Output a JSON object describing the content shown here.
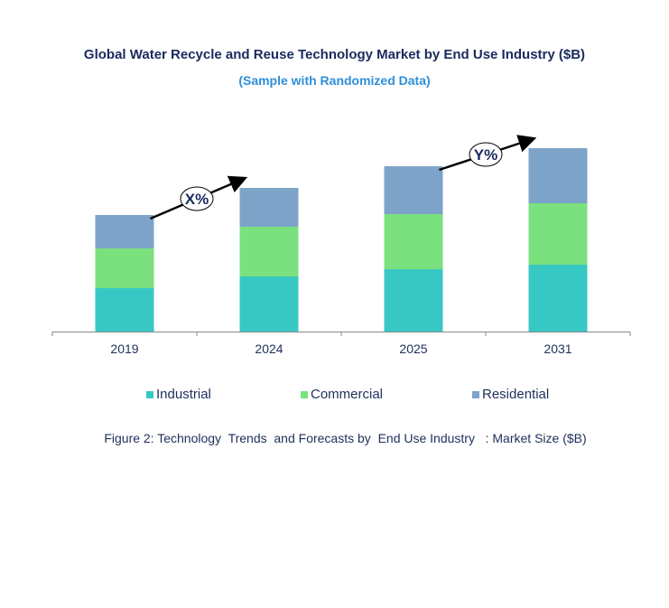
{
  "chart_data": {
    "type": "bar",
    "stacked": true,
    "title": "Global Water Recycle and Reuse Technology Market by End Use Industry ($B)",
    "subtitle": "(Sample with Randomized Data)",
    "categories": [
      "2019",
      "2024",
      "2025",
      "2031"
    ],
    "series": [
      {
        "name": "Industrial",
        "color": "#38c8c4",
        "values": [
          48,
          61,
          69,
          74
        ]
      },
      {
        "name": "Commercial",
        "color": "#7ae17e",
        "values": [
          44,
          55,
          61,
          68
        ]
      },
      {
        "name": "Residential",
        "color": "#7ea3c8",
        "values": [
          37,
          43,
          53,
          61
        ]
      }
    ],
    "ylim": [
      0,
      220
    ],
    "grid": false,
    "legend_position": "bottom",
    "annotations": [
      {
        "label": "X%",
        "from": "2019",
        "to": "2024"
      },
      {
        "label": "Y%",
        "from": "2025",
        "to": "2031"
      }
    ],
    "caption": "Figure 2: Technology  Trends  and Forecasts by  End Use Industry   : Market Size ($B)"
  }
}
